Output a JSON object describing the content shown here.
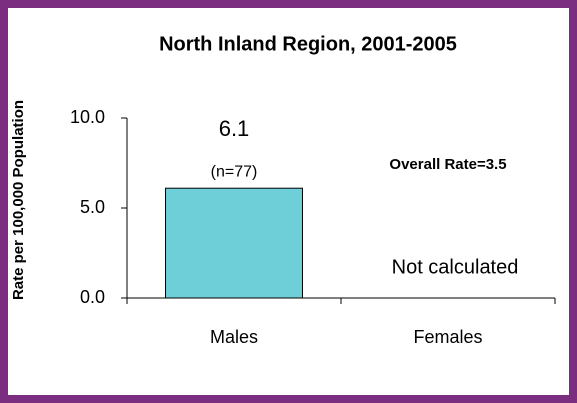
{
  "chart_data": {
    "type": "bar",
    "title": "North Inland Region, 2001-2005",
    "y_label": "Rate per 100,000 Population",
    "categories": [
      "Males",
      "Females"
    ],
    "values": [
      6.1,
      null
    ],
    "color": "#6fcfd8",
    "annotations": {
      "counts": [
        "(n=77)",
        null
      ],
      "missing": "Not calculated",
      "overall": "Overall Rate=3.5"
    },
    "ylim": [
      0,
      10
    ],
    "yticks": [
      {
        "value": 0,
        "label": "0.0"
      },
      {
        "value": 5,
        "label": "5.0"
      },
      {
        "value": 10,
        "label": "10.0"
      }
    ],
    "grid": false
  }
}
